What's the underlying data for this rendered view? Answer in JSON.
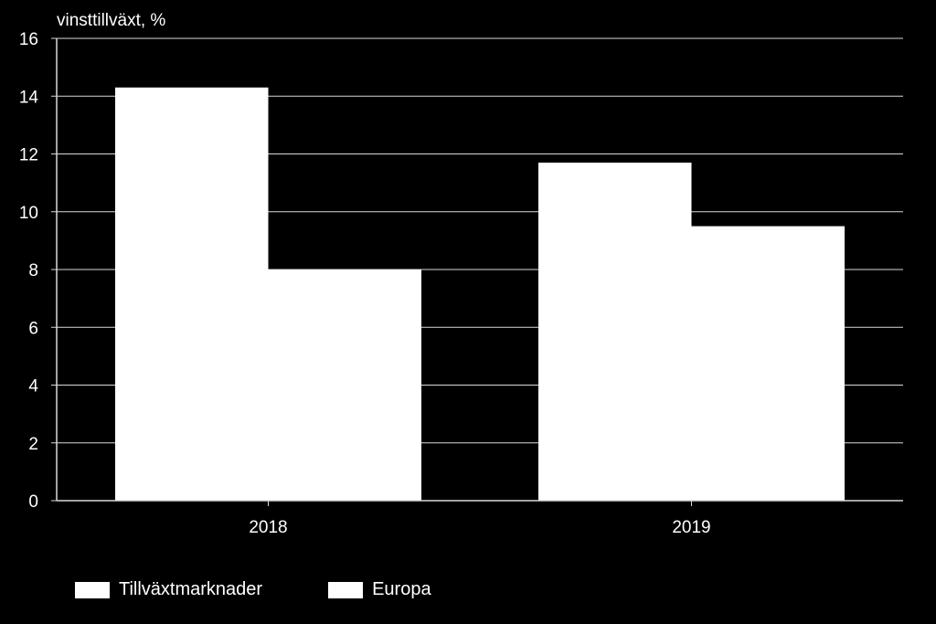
{
  "chart_data": {
    "type": "bar",
    "ylabel": "vinsttillväxt, %",
    "categories": [
      "2018",
      "2019"
    ],
    "series": [
      {
        "name": "Tillväxtmarknader",
        "values": [
          14.3,
          11.7
        ]
      },
      {
        "name": "Europa",
        "values": [
          8.0,
          9.5
        ]
      }
    ],
    "ylim": [
      0,
      16
    ],
    "yticks": [
      0,
      2,
      4,
      6,
      8,
      10,
      12,
      14,
      16
    ],
    "grid": true,
    "legend_position": "bottom-left",
    "colors": {
      "background": "#000000",
      "bars": "#ffffff",
      "grid": "#d9d9d9",
      "text": "#ffffff"
    }
  }
}
